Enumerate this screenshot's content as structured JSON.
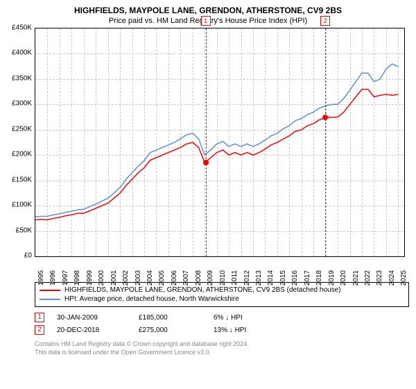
{
  "title": "HIGHFIELDS, MAYPOLE LANE, GRENDON, ATHERSTONE, CV9 2BS",
  "subtitle": "Price paid vs. HM Land Registry's House Price Index (HPI)",
  "chart": {
    "type": "line",
    "background_color": "#ffffff",
    "grid_color": "#c8c8c8",
    "border_color": "#000000",
    "ylim": [
      0,
      450000
    ],
    "ytick_step": 50000,
    "ytick_prefix": "£",
    "ytick_suffix": "K",
    "ytick_divisor": 1000,
    "xlim": [
      1995,
      2025.5
    ],
    "xticks": [
      1995,
      1996,
      1997,
      1998,
      1999,
      2000,
      2001,
      2002,
      2003,
      2004,
      2005,
      2006,
      2007,
      2008,
      2009,
      2010,
      2011,
      2012,
      2013,
      2014,
      2015,
      2016,
      2017,
      2018,
      2019,
      2020,
      2021,
      2022,
      2023,
      2024,
      2025
    ],
    "title_fontsize": 12,
    "label_fontsize": 10,
    "line_width": 1.5,
    "series": [
      {
        "name": "HIGHFIELDS, MAYPOLE LANE, GRENDON, ATHERSTONE, CV9 2BS (detached house)",
        "color": "#ff0000",
        "x": [
          1995,
          1995.5,
          1996,
          1996.5,
          1997,
          1997.5,
          1998,
          1998.5,
          1999,
          1999.5,
          2000,
          2000.5,
          2001,
          2001.5,
          2002,
          2002.5,
          2003,
          2003.5,
          2004,
          2004.5,
          2005,
          2005.5,
          2006,
          2006.5,
          2007,
          2007.5,
          2008,
          2008.5,
          2009,
          2009.5,
          2010,
          2010.5,
          2011,
          2011.5,
          2012,
          2012.5,
          2013,
          2013.5,
          2014,
          2014.5,
          2015,
          2015.5,
          2016,
          2016.5,
          2017,
          2017.5,
          2018,
          2018.5,
          2019,
          2019.5,
          2020,
          2020.5,
          2021,
          2021.5,
          2022,
          2022.5,
          2023,
          2023.5,
          2024,
          2024.5,
          2025
        ],
        "y": [
          72000,
          73000,
          72000,
          75000,
          77000,
          80000,
          82000,
          85000,
          85000,
          90000,
          95000,
          100000,
          105000,
          115000,
          125000,
          140000,
          152000,
          165000,
          175000,
          190000,
          195000,
          200000,
          205000,
          210000,
          215000,
          222000,
          225000,
          215000,
          185000,
          195000,
          205000,
          210000,
          200000,
          205000,
          200000,
          205000,
          200000,
          205000,
          212000,
          220000,
          225000,
          232000,
          238000,
          247000,
          250000,
          258000,
          262000,
          270000,
          273000,
          275000,
          275000,
          285000,
          300000,
          315000,
          330000,
          330000,
          315000,
          318000,
          320000,
          318000,
          320000
        ]
      },
      {
        "name": "HPI: Average price, detached house, North Warwickshire",
        "color": "#5b8fd6",
        "x": [
          1995,
          1995.5,
          1996,
          1996.5,
          1997,
          1997.5,
          1998,
          1998.5,
          1999,
          1999.5,
          2000,
          2000.5,
          2001,
          2001.5,
          2002,
          2002.5,
          2003,
          2003.5,
          2004,
          2004.5,
          2005,
          2005.5,
          2006,
          2006.5,
          2007,
          2007.5,
          2008,
          2008.5,
          2009,
          2009.5,
          2010,
          2010.5,
          2011,
          2011.5,
          2012,
          2012.5,
          2013,
          2013.5,
          2014,
          2014.5,
          2015,
          2015.5,
          2016,
          2016.5,
          2017,
          2017.5,
          2018,
          2018.5,
          2019,
          2019.5,
          2020,
          2020.5,
          2021,
          2021.5,
          2022,
          2022.5,
          2023,
          2023.5,
          2024,
          2024.5,
          2025
        ],
        "y": [
          78000,
          79000,
          79000,
          82000,
          84000,
          87000,
          89000,
          92000,
          93000,
          98000,
          103000,
          109000,
          115000,
          125000,
          136000,
          152000,
          165000,
          178000,
          189000,
          205000,
          210000,
          215000,
          220000,
          225000,
          232000,
          240000,
          243000,
          232000,
          200000,
          210000,
          222000,
          227000,
          217000,
          222000,
          217000,
          222000,
          217000,
          222000,
          230000,
          238000,
          243000,
          252000,
          258000,
          268000,
          272000,
          280000,
          285000,
          293000,
          297000,
          300000,
          300000,
          312000,
          328000,
          345000,
          362000,
          362000,
          345000,
          350000,
          370000,
          380000,
          375000
        ]
      }
    ],
    "markers": [
      {
        "index": "1",
        "x": 2009.08,
        "y": 185000,
        "box_top_offset": -18
      },
      {
        "index": "2",
        "x": 2018.97,
        "y": 275000,
        "box_top_offset": -18
      }
    ]
  },
  "legend": {
    "items": [
      {
        "color": "#ff0000",
        "label": "HIGHFIELDS, MAYPOLE LANE, GRENDON, ATHERSTONE, CV9 2BS (detached house)"
      },
      {
        "color": "#5b8fd6",
        "label": "HPI: Average price, detached house, North Warwickshire"
      }
    ]
  },
  "transactions": [
    {
      "index": "1",
      "date": "30-JAN-2009",
      "price": "£185,000",
      "pct": "6% ↓ HPI"
    },
    {
      "index": "2",
      "date": "20-DEC-2018",
      "price": "£275,000",
      "pct": "13% ↓ HPI"
    }
  ],
  "footer": {
    "line1": "Contains HM Land Registry data © Crown copyright and database right 2024.",
    "line2": "This data is licensed under the Open Government Licence v3.0."
  }
}
